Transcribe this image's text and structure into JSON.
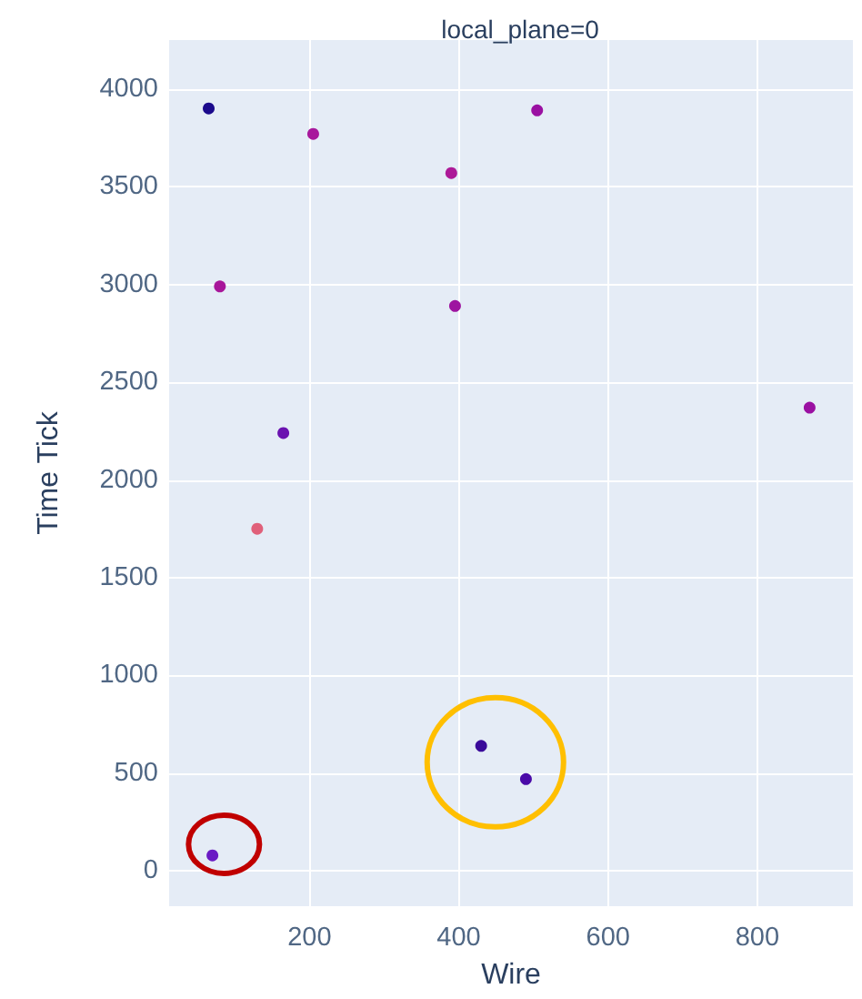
{
  "chart_data": {
    "type": "scatter",
    "title": "local_plane=0",
    "xlabel": "Wire",
    "ylabel": "Time Tick",
    "x": [
      65,
      205,
      390,
      505,
      80,
      395,
      165,
      870,
      130,
      430,
      490,
      70
    ],
    "values": [
      3900,
      3770,
      3570,
      3890,
      2990,
      2890,
      2240,
      2370,
      1750,
      640,
      470,
      80
    ],
    "colors": [
      "#1b0a8c",
      "#a8189c",
      "#ad1a98",
      "#9a10a2",
      "#a8169a",
      "#9e14a0",
      "#6a12b0",
      "#9a10a2",
      "#e0607a",
      "#3a0a9a",
      "#4a0aa8",
      "#6a1ac4"
    ],
    "xlim": [
      12,
      928
    ],
    "ylim": [
      -180,
      4250
    ],
    "xticks": [
      200,
      400,
      600,
      800
    ],
    "yticks": [
      0,
      500,
      1000,
      1500,
      2000,
      2500,
      3000,
      3500,
      4000
    ],
    "grid": true,
    "marker": "circle"
  }
}
